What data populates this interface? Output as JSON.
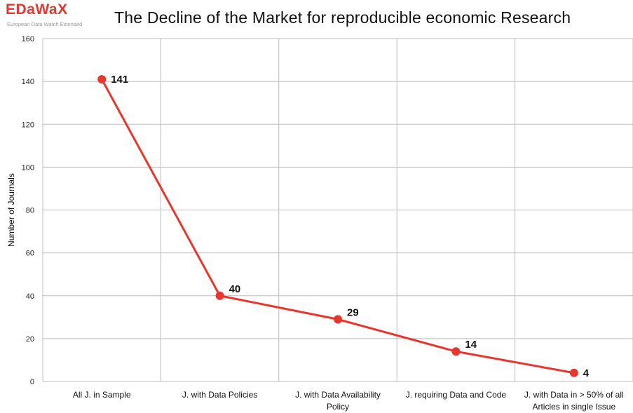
{
  "logo": {
    "name": "EDaWaX",
    "tagline": "European Data Watch Extended"
  },
  "colors": {
    "series": "#e8352e",
    "logo": "#e8352e",
    "grid": "#bdbdbd"
  },
  "chart_data": {
    "type": "line",
    "title": "The Decline of the Market for reproducible economic Research",
    "xlabel": "",
    "ylabel": "Number of Journals",
    "ylim": [
      0,
      160
    ],
    "yticks": [
      0,
      20,
      40,
      60,
      80,
      100,
      120,
      140,
      160
    ],
    "grid": true,
    "legend": "none",
    "categories": [
      [
        "All J. in Sample"
      ],
      [
        "J. with Data Policies"
      ],
      [
        "J. with Data Availability",
        "Policy"
      ],
      [
        "J. requiring Data and Code"
      ],
      [
        "J. with Data in > 50% of all",
        "Articles in single Issue"
      ]
    ],
    "series": [
      {
        "values": [
          141,
          40,
          29,
          14,
          4
        ],
        "data_labels": [
          "141",
          "40",
          "29",
          "14",
          "4"
        ]
      }
    ]
  }
}
